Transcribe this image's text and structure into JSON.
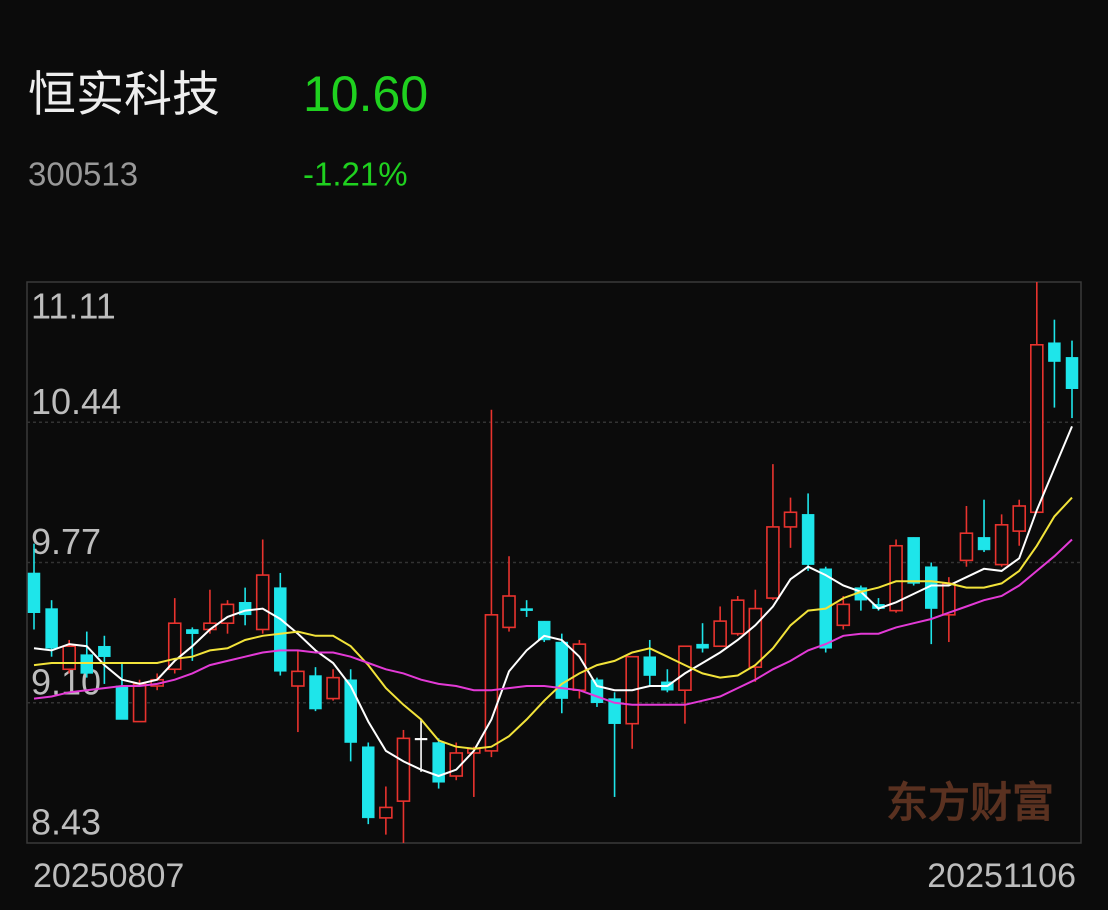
{
  "header": {
    "name": "恒实科技",
    "price": "10.60",
    "code": "300513",
    "change": "-1.21%"
  },
  "chart_data": {
    "type": "candlestick",
    "categories": [
      "20250807",
      null,
      null,
      null,
      null,
      null,
      null,
      null,
      null,
      null,
      null,
      null,
      null,
      null,
      null,
      null,
      null,
      null,
      null,
      null,
      null,
      null,
      null,
      null,
      null,
      null,
      null,
      null,
      null,
      null,
      null,
      null,
      null,
      null,
      null,
      null,
      null,
      null,
      null,
      null,
      null,
      null,
      null,
      null,
      null,
      null,
      null,
      null,
      null,
      null,
      null,
      null,
      null,
      null,
      null,
      null,
      null,
      null,
      null,
      "20251106"
    ],
    "open": [
      9.72,
      9.55,
      9.26,
      9.33,
      9.37,
      9.18,
      9.01,
      9.18,
      9.26,
      9.45,
      9.45,
      9.48,
      9.58,
      9.45,
      9.65,
      9.18,
      9.23,
      9.12,
      9.21,
      8.89,
      8.55,
      8.63,
      8.93,
      8.91,
      8.75,
      8.86,
      8.87,
      9.46,
      9.55,
      9.49,
      9.39,
      9.16,
      9.21,
      9.12,
      9.0,
      9.32,
      9.2,
      9.16,
      9.38,
      9.37,
      9.43,
      9.27,
      9.6,
      9.94,
      10.0,
      9.74,
      9.47,
      9.65,
      9.57,
      9.54,
      9.89,
      9.75,
      9.52,
      9.78,
      9.89,
      9.76,
      9.92,
      10.01,
      10.82,
      10.75
    ],
    "close": [
      9.53,
      9.36,
      9.37,
      9.24,
      9.32,
      9.02,
      9.19,
      9.21,
      9.48,
      9.43,
      9.48,
      9.57,
      9.52,
      9.71,
      9.25,
      9.25,
      9.07,
      9.22,
      8.91,
      8.55,
      8.6,
      8.93,
      8.93,
      8.72,
      8.86,
      8.88,
      9.52,
      9.61,
      9.54,
      9.4,
      9.12,
      9.38,
      9.1,
      9.0,
      9.32,
      9.23,
      9.16,
      9.37,
      9.36,
      9.49,
      9.59,
      9.55,
      9.94,
      10.01,
      9.76,
      9.36,
      9.57,
      9.59,
      9.55,
      9.85,
      9.67,
      9.55,
      9.67,
      9.91,
      9.83,
      9.95,
      10.04,
      10.81,
      10.73,
      10.6
    ],
    "high": [
      9.86,
      9.59,
      9.4,
      9.44,
      9.42,
      9.29,
      9.21,
      9.24,
      9.6,
      9.46,
      9.64,
      9.59,
      9.65,
      9.88,
      9.72,
      9.35,
      9.27,
      9.26,
      9.26,
      8.91,
      8.7,
      8.97,
      9.02,
      8.93,
      8.91,
      8.89,
      10.5,
      9.8,
      9.59,
      9.49,
      9.43,
      9.4,
      9.22,
      9.15,
      9.32,
      9.4,
      9.26,
      9.37,
      9.48,
      9.56,
      9.61,
      9.64,
      10.24,
      10.08,
      10.1,
      9.75,
      9.61,
      9.66,
      9.6,
      9.88,
      9.89,
      9.77,
      9.7,
      10.04,
      10.07,
      10.0,
      10.07,
      11.11,
      10.93,
      10.83
    ],
    "low": [
      9.45,
      9.32,
      9.24,
      9.22,
      9.19,
      9.02,
      9.01,
      9.16,
      9.24,
      9.3,
      9.43,
      9.43,
      9.47,
      9.43,
      9.23,
      8.96,
      9.06,
      9.11,
      8.82,
      8.52,
      8.47,
      8.43,
      8.77,
      8.69,
      8.73,
      8.65,
      8.84,
      9.44,
      9.51,
      9.39,
      9.05,
      9.12,
      9.08,
      8.65,
      8.88,
      9.18,
      9.15,
      9.0,
      9.34,
      9.37,
      9.42,
      9.2,
      9.59,
      9.84,
      9.73,
      9.34,
      9.45,
      9.54,
      9.54,
      9.53,
      9.66,
      9.38,
      9.39,
      9.75,
      9.82,
      9.75,
      9.85,
      10.01,
      10.51,
      10.46
    ],
    "up_color": "#e8332e",
    "down_color": "#1ee5ea",
    "flat_color": "#ffffff",
    "ma_lines": [
      {
        "color": "#ffffff",
        "values": [
          9.36,
          9.35,
          9.38,
          9.37,
          9.28,
          9.21,
          9.19,
          9.21,
          9.3,
          9.37,
          9.45,
          9.51,
          9.54,
          9.55,
          9.5,
          9.43,
          9.35,
          9.29,
          9.18,
          9.01,
          8.87,
          8.82,
          8.78,
          8.75,
          8.78,
          8.87,
          9.02,
          9.25,
          9.35,
          9.42,
          9.4,
          9.32,
          9.18,
          9.16,
          9.16,
          9.18,
          9.18,
          9.24,
          9.29,
          9.34,
          9.4,
          9.47,
          9.56,
          9.69,
          9.75,
          9.71,
          9.66,
          9.63,
          9.55,
          9.58,
          9.62,
          9.66,
          9.66,
          9.7,
          9.74,
          9.73,
          9.79,
          10.02,
          10.22,
          10.42
        ]
      },
      {
        "color": "#f2e33a",
        "values": [
          9.28,
          9.29,
          9.29,
          9.29,
          9.29,
          9.29,
          9.29,
          9.29,
          9.31,
          9.32,
          9.35,
          9.36,
          9.4,
          9.42,
          9.43,
          9.44,
          9.42,
          9.42,
          9.37,
          9.28,
          9.17,
          9.09,
          9.02,
          8.92,
          8.89,
          8.88,
          8.89,
          8.94,
          9.02,
          9.11,
          9.19,
          9.24,
          9.28,
          9.3,
          9.34,
          9.36,
          9.32,
          9.28,
          9.24,
          9.22,
          9.23,
          9.28,
          9.36,
          9.47,
          9.54,
          9.55,
          9.6,
          9.63,
          9.65,
          9.68,
          9.68,
          9.68,
          9.67,
          9.65,
          9.65,
          9.67,
          9.73,
          9.85,
          9.99,
          10.08
        ]
      },
      {
        "color": "#e33ad6",
        "values": [
          9.12,
          9.13,
          9.15,
          9.16,
          9.17,
          9.18,
          9.18,
          9.19,
          9.21,
          9.24,
          9.28,
          9.3,
          9.32,
          9.34,
          9.35,
          9.35,
          9.34,
          9.34,
          9.32,
          9.29,
          9.26,
          9.24,
          9.21,
          9.19,
          9.18,
          9.16,
          9.16,
          9.17,
          9.18,
          9.18,
          9.17,
          9.16,
          9.13,
          9.1,
          9.09,
          9.09,
          9.09,
          9.09,
          9.11,
          9.13,
          9.17,
          9.21,
          9.26,
          9.3,
          9.35,
          9.38,
          9.42,
          9.43,
          9.43,
          9.46,
          9.48,
          9.5,
          9.53,
          9.56,
          9.59,
          9.61,
          9.66,
          9.73,
          9.8,
          9.88
        ]
      }
    ],
    "ylim": [
      8.43,
      11.11
    ],
    "yticks": [
      8.43,
      {
        "value": 9.1,
        "label": "9.10"
      },
      9.77,
      10.44,
      11.11
    ],
    "grid": true,
    "watermark": "东方财富"
  }
}
